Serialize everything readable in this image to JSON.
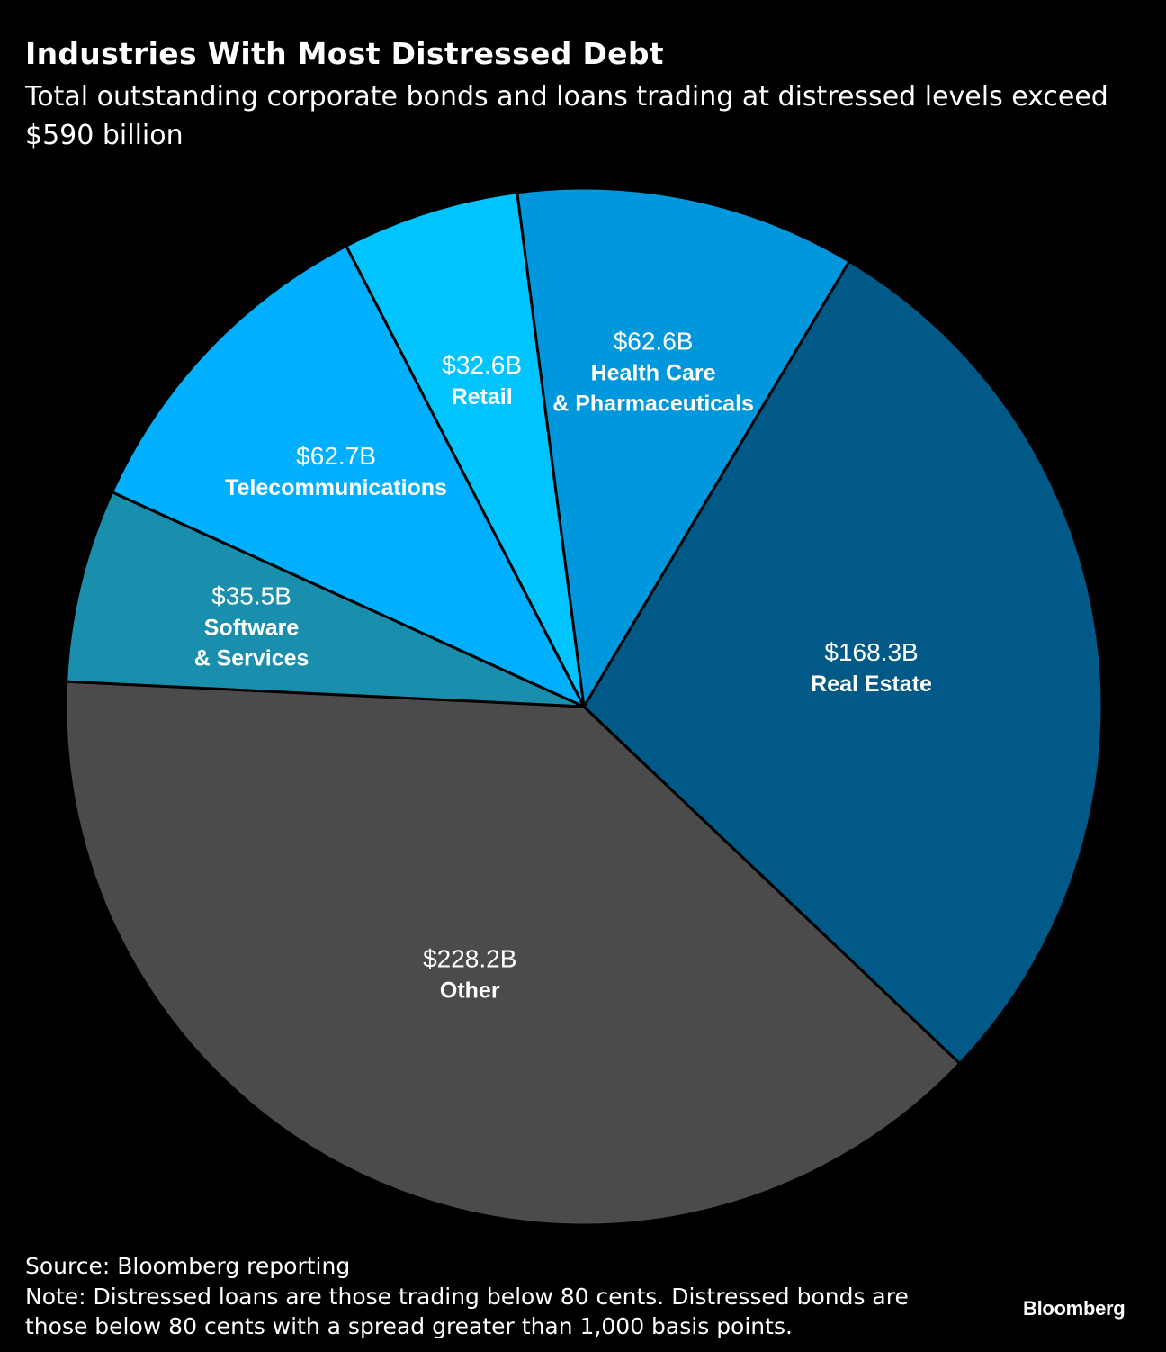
{
  "title": "Industries With Most Distressed Debt",
  "subtitle": "Total outstanding corporate bonds and loans trading at distressed levels exceed $590 billion",
  "source": "Source: Bloomberg reporting",
  "note": "Note: Distressed loans are those trading below 80 cents. Distressed bonds are those below 80 cents with a spread greater than 1,000 basis points.",
  "brand": "Bloomberg",
  "chart_data": {
    "type": "pie",
    "title": "Industries With Most Distressed Debt",
    "unit": "$B",
    "slices": [
      {
        "category": "Real Estate",
        "value": 168.3,
        "value_label": "$168.3B",
        "label_lines": [
          "Real Estate"
        ],
        "color": "#005986"
      },
      {
        "category": "Other",
        "value": 228.2,
        "value_label": "$228.2B",
        "label_lines": [
          "Other"
        ],
        "color": "#4b4b4b"
      },
      {
        "category": "Software & Services",
        "value": 35.5,
        "value_label": "$35.5B",
        "label_lines": [
          "Software",
          "& Services"
        ],
        "color": "#1a8fad"
      },
      {
        "category": "Telecommunications",
        "value": 62.7,
        "value_label": "$62.7B",
        "label_lines": [
          "Telecommunications"
        ],
        "color": "#00b0ff"
      },
      {
        "category": "Retail",
        "value": 32.6,
        "value_label": "$32.6B",
        "label_lines": [
          "Retail"
        ],
        "color": "#00c4ff"
      },
      {
        "category": "Health Care & Pharmaceuticals",
        "value": 62.6,
        "value_label": "$62.6B",
        "label_lines": [
          "Health Care",
          "& Pharmaceuticals"
        ],
        "color": "#0097dc"
      }
    ],
    "start_angle_deg": 30.8,
    "direction": "clockwise",
    "legend": "none"
  }
}
